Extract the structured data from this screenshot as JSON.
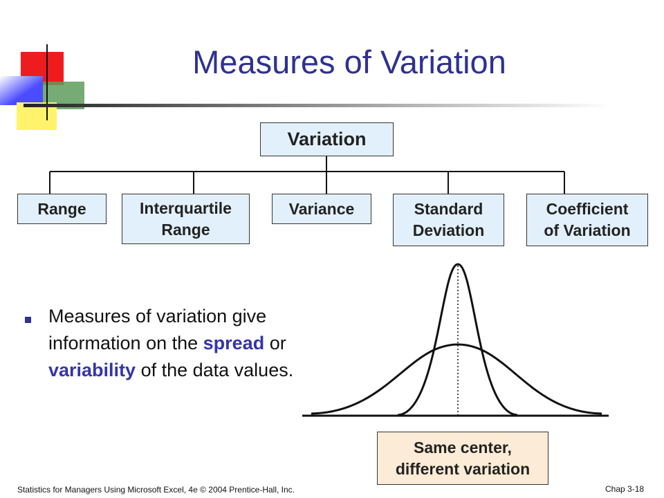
{
  "header": {
    "title": "Measures of Variation"
  },
  "tree": {
    "root": "Variation",
    "children": [
      {
        "lines": [
          "Range"
        ]
      },
      {
        "lines": [
          "Interquartile",
          "Range"
        ]
      },
      {
        "lines": [
          "Variance"
        ]
      },
      {
        "lines": [
          "Standard",
          "Deviation"
        ]
      },
      {
        "lines": [
          "Coefficient",
          "of Variation"
        ]
      }
    ]
  },
  "bullet": {
    "segments": [
      {
        "text": "Measures of variation give information on the ",
        "highlight": false
      },
      {
        "text": "spread",
        "highlight": true
      },
      {
        "text": " or ",
        "highlight": false
      },
      {
        "text": "variability",
        "highlight": true
      },
      {
        "text": " of the data values.",
        "highlight": false
      }
    ]
  },
  "caption": {
    "lines": [
      "Same center,",
      "different variation"
    ]
  },
  "footer": {
    "left": "Statistics for Managers Using Microsoft Excel, 4e © 2004 Prentice-Hall, Inc.",
    "right": "Chap 3-18"
  }
}
